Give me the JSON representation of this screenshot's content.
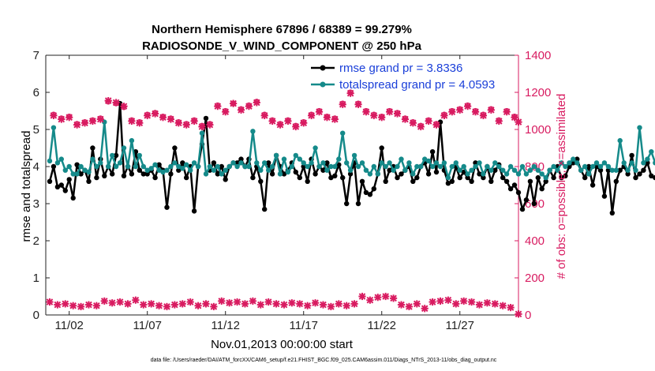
{
  "chart_data": {
    "type": "line",
    "title": "Northern Hemisphere 67896 / 68389 = 99.279%",
    "subtitle": "RADIOSONDE_V_WIND_COMPONENT @ 250 hPa",
    "xlabel": "Nov.01,2013 00:00:00 start",
    "ylabel_left": "rmse and totalspread",
    "ylabel_right": "# of obs: o=possible; ×=assimilated",
    "footer": "data file: /Users/raeder/DAI/ATM_forcXX/CAM6_setup/f.e21.FHIST_BGC.f09_025.CAM6assim.011/Diags_NTrS_2013-11/obs_diag_output.nc",
    "xlim": [
      0.5,
      30.75
    ],
    "ylim_left": [
      0,
      7
    ],
    "ylim_right": [
      0,
      1400
    ],
    "x_ticks": [
      {
        "value": 2,
        "label": "11/02"
      },
      {
        "value": 7,
        "label": "11/07"
      },
      {
        "value": 12,
        "label": "11/12"
      },
      {
        "value": 17,
        "label": "11/17"
      },
      {
        "value": 22,
        "label": "11/22"
      },
      {
        "value": 27,
        "label": "11/27"
      }
    ],
    "y_ticks_left": [
      0,
      1,
      2,
      3,
      4,
      5,
      6,
      7
    ],
    "y_ticks_right": [
      0,
      200,
      400,
      600,
      800,
      1000,
      1200,
      1400
    ],
    "legend_position": "top-right",
    "colors": {
      "rmse": "#000000",
      "spread": "#158a8a",
      "obs": "#d81b60",
      "legend_text": "#1a3fd9"
    },
    "x_start": 0.75,
    "x_step": 0.25,
    "series": [
      {
        "name": "rmse grand pr = 3.8336",
        "axis": "left",
        "color": "#000000",
        "values": [
          3.6,
          4.0,
          3.45,
          3.5,
          3.35,
          3.65,
          3.15,
          4.05,
          3.8,
          3.9,
          3.6,
          4.5,
          3.7,
          4.2,
          3.75,
          4.0,
          3.8,
          4.3,
          5.7,
          3.75,
          4.0,
          3.8,
          4.4,
          3.9,
          3.8,
          3.8,
          3.9,
          3.7,
          4.05,
          3.9,
          2.9,
          3.8,
          4.5,
          3.9,
          4.1,
          3.7,
          4.0,
          2.8,
          4.0,
          4.6,
          5.3,
          3.9,
          4.1,
          3.8,
          4.0,
          3.65,
          4.0,
          4.1,
          4.1,
          4.2,
          4.0,
          4.2,
          3.7,
          4.0,
          3.6,
          2.85,
          4.1,
          3.8,
          4.3,
          4.0,
          3.8,
          3.9,
          4.1,
          3.85,
          3.7,
          4.0,
          3.6,
          4.2,
          3.8,
          4.0,
          3.9,
          4.1,
          3.7,
          3.75,
          4.05,
          3.7,
          3.0,
          3.8,
          4.1,
          3.0,
          3.6,
          3.3,
          3.25,
          3.4,
          3.8,
          4.5,
          3.6,
          3.9,
          4.0,
          3.7,
          3.8,
          3.9,
          4.0,
          3.6,
          3.7,
          4.0,
          4.1,
          3.8,
          4.4,
          3.85,
          5.2,
          3.9,
          3.55,
          3.6,
          4.0,
          3.7,
          3.85,
          3.7,
          3.6,
          4.1,
          3.8,
          3.7,
          4.0,
          3.6,
          3.9,
          4.05,
          3.7,
          3.6,
          3.4,
          3.5,
          3.3,
          2.85,
          3.1,
          3.6,
          3.0,
          3.7,
          3.4,
          3.6,
          3.9,
          3.7,
          4.0,
          3.7,
          3.75,
          4.0,
          4.1,
          4.2,
          3.9,
          3.7,
          4.0,
          3.5,
          4.0,
          3.9,
          3.2,
          3.9,
          2.75,
          3.6,
          3.9,
          4.0,
          3.8,
          4.3,
          3.7,
          3.8,
          3.9,
          4.1,
          3.75,
          3.7
        ]
      },
      {
        "name": "totalspread grand pr = 4.0593",
        "axis": "left",
        "color": "#158a8a",
        "values": [
          4.15,
          5.05,
          4.1,
          4.2,
          3.9,
          4.0,
          3.8,
          3.8,
          4.0,
          3.9,
          3.85,
          4.2,
          4.0,
          4.1,
          5.2,
          4.0,
          4.3,
          4.0,
          4.1,
          4.5,
          4.0,
          4.7,
          4.0,
          4.3,
          4.0,
          3.9,
          3.95,
          4.05,
          3.9,
          3.85,
          3.9,
          4.0,
          4.1,
          4.0,
          3.95,
          4.05,
          3.9,
          4.1,
          4.0,
          4.9,
          3.8,
          4.0,
          3.9,
          4.0,
          3.8,
          3.9,
          4.0,
          4.1,
          4.0,
          4.1,
          4.0,
          4.0,
          4.95,
          4.1,
          3.9,
          4.1,
          3.9,
          4.0,
          4.3,
          3.8,
          4.2,
          3.85,
          4.0,
          4.3,
          4.2,
          4.1,
          4.0,
          4.1,
          4.5,
          4.0,
          4.1,
          3.9,
          4.0,
          4.0,
          4.2,
          4.9,
          4.1,
          3.9,
          4.3,
          4.0,
          4.1,
          3.9,
          3.8,
          4.0,
          3.8,
          4.1,
          4.0,
          4.1,
          3.9,
          4.0,
          4.2,
          3.9,
          4.1,
          3.8,
          4.0,
          4.0,
          4.2,
          4.15,
          4.0,
          4.1,
          4.0,
          4.1,
          3.7,
          4.0,
          4.1,
          3.9,
          4.0,
          3.8,
          3.9,
          4.0,
          4.1,
          3.8,
          4.0,
          3.9,
          4.1,
          4.0,
          3.9,
          3.8,
          4.0,
          3.9,
          3.8,
          4.0,
          3.8,
          3.9,
          4.0,
          3.9,
          3.8,
          3.7,
          3.9,
          4.0,
          3.9,
          4.1,
          4.0,
          4.1,
          4.2,
          4.1,
          3.9,
          4.0,
          3.8,
          4.0,
          4.1,
          4.0,
          4.1,
          4.0,
          3.9,
          3.9,
          4.7,
          4.1,
          3.9,
          4.1,
          3.9,
          5.05,
          4.1,
          4.2,
          4.4,
          4.1
        ]
      },
      {
        "name": "possible",
        "axis": "right",
        "marker": "circle",
        "color": "#d81b60",
        "x": [
          1,
          1.5,
          2,
          2.5,
          3,
          3.5,
          4,
          4.5,
          5,
          5.5,
          6,
          6.5,
          7,
          7.5,
          8,
          8.5,
          9,
          9.5,
          10,
          10.5,
          11,
          11.5,
          12,
          12.5,
          13,
          13.5,
          14,
          14.5,
          15,
          15.5,
          16,
          16.5,
          17,
          17.5,
          18,
          18.5,
          19,
          19.5,
          20,
          20.5,
          21,
          21.5,
          22,
          22.5,
          23,
          23.5,
          24,
          24.5,
          25,
          25.5,
          26,
          26.5,
          27,
          27.5,
          28,
          28.5,
          29,
          29.5,
          30,
          30.5
        ],
        "values": [
          1080,
          1060,
          1070,
          1030,
          1040,
          1050,
          1060,
          1150,
          1140,
          1120,
          1050,
          1040,
          1080,
          1090,
          1070,
          1060,
          1040,
          1030,
          1050,
          1020,
          1030,
          1130,
          1100,
          1140,
          1110,
          1130,
          1150,
          1080,
          1050,
          1030,
          1050,
          1020,
          1040,
          1080,
          1100,
          1070,
          1060,
          1140,
          1200,
          1140,
          1100,
          1080,
          1070,
          1100,
          1090,
          1060,
          1040,
          1020,
          1050,
          1030,
          1080,
          1100,
          1110,
          1130,
          1100,
          1080,
          1110,
          1050,
          1100,
          1070
        ]
      },
      {
        "name": "assimilated",
        "axis": "right",
        "marker": "x",
        "color": "#d81b60",
        "x": [
          1,
          1.5,
          2,
          2.5,
          3,
          3.5,
          4,
          4.5,
          5,
          5.5,
          6,
          6.5,
          7,
          7.5,
          8,
          8.5,
          9,
          9.5,
          10,
          10.5,
          11,
          11.5,
          12,
          12.5,
          13,
          13.5,
          14,
          14.5,
          15,
          15.5,
          16,
          16.5,
          17,
          17.5,
          18,
          18.5,
          19,
          19.5,
          20,
          20.5,
          21,
          21.5,
          22,
          22.5,
          23,
          23.5,
          24,
          24.5,
          25,
          25.5,
          26,
          26.5,
          27,
          27.5,
          28,
          28.5,
          29,
          29.5,
          30,
          30.5,
          30.75
        ],
        "values": [
          1075,
          1055,
          1065,
          1025,
          1035,
          1045,
          1055,
          1155,
          1145,
          1125,
          1045,
          1035,
          1075,
          1085,
          1065,
          1055,
          1035,
          1025,
          1045,
          1015,
          1025,
          1125,
          1095,
          1140,
          1105,
          1125,
          1145,
          1075,
          1045,
          1025,
          1045,
          1015,
          1035,
          1075,
          1095,
          1065,
          1055,
          1135,
          1195,
          1135,
          1095,
          1075,
          1065,
          1095,
          1085,
          1055,
          1035,
          1015,
          1045,
          1025,
          1075,
          1095,
          1105,
          1125,
          1095,
          1075,
          1105,
          1045,
          1095,
          1065,
          1040
        ]
      },
      {
        "name": "low_obs",
        "axis": "right",
        "marker": "x",
        "color": "#d81b60",
        "x": [
          0.75,
          1.25,
          1.75,
          2.25,
          2.75,
          3.25,
          3.75,
          4.25,
          4.75,
          5.25,
          5.75,
          6.25,
          6.75,
          7.25,
          7.75,
          8.25,
          8.75,
          9.25,
          9.75,
          10.25,
          10.75,
          11.25,
          11.75,
          12.25,
          12.75,
          13.25,
          13.75,
          14.25,
          14.75,
          15.25,
          15.75,
          16.25,
          16.75,
          17.25,
          17.75,
          18.25,
          18.75,
          19.25,
          19.75,
          20.25,
          20.75,
          21.25,
          21.75,
          22.25,
          22.75,
          23.25,
          23.75,
          24.25,
          24.75,
          25.25,
          25.75,
          26.25,
          26.75,
          27.25,
          27.75,
          28.25,
          28.75,
          29.25,
          29.75,
          30.25,
          30.75
        ],
        "values": [
          70,
          55,
          60,
          50,
          45,
          55,
          50,
          75,
          65,
          70,
          60,
          80,
          55,
          60,
          50,
          45,
          55,
          60,
          70,
          50,
          60,
          45,
          75,
          65,
          70,
          60,
          75,
          55,
          70,
          60,
          55,
          65,
          60,
          50,
          65,
          55,
          45,
          60,
          50,
          60,
          100,
          80,
          95,
          100,
          90,
          55,
          45,
          60,
          35,
          70,
          75,
          80,
          60,
          75,
          70,
          55,
          65,
          60,
          50,
          40,
          5
        ]
      }
    ],
    "legend": [
      {
        "label": "rmse grand pr = 3.8336",
        "color": "#000000"
      },
      {
        "label": "totalspread grand pr = 4.0593",
        "color": "#158a8a"
      }
    ]
  }
}
